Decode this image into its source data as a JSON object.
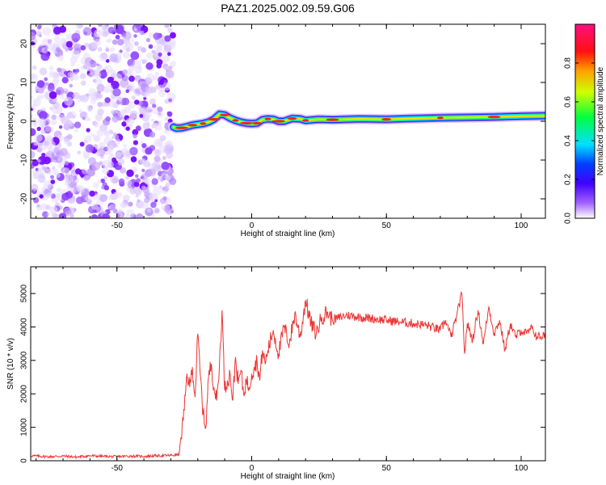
{
  "title": "PAZ1.2025.002.09.59.G06",
  "colorbar": {
    "label": "Normalized spectral amplitude",
    "ticks": [
      0.0,
      0.2,
      0.4,
      0.6,
      0.8
    ],
    "tick_labels": [
      "0.0",
      "0.2",
      "0.4",
      "0.6",
      "0.8"
    ],
    "range": [
      0,
      1
    ],
    "colormap": [
      "#ffffff",
      "#7a00ff",
      "#0000ff",
      "#00ffff",
      "#00ff00",
      "#ffff00",
      "#ff0000",
      "#ff007f"
    ]
  },
  "chart_data": [
    {
      "type": "heatmap",
      "xlabel": "Height of straight line (km)",
      "ylabel": "Frequency (Hz)",
      "xlim": [
        -82,
        109
      ],
      "ylim": [
        -25,
        25
      ],
      "xticks": [
        -50,
        0,
        50,
        100
      ],
      "xtick_labels": [
        "-50",
        "0",
        "50",
        "100"
      ],
      "yticks": [
        -20,
        -10,
        0,
        10,
        20
      ],
      "ytick_labels": [
        "-20",
        "-10",
        "0",
        "10",
        "20"
      ],
      "noise_region_x": [
        -82,
        -29
      ],
      "signal_track": {
        "x": [
          -29,
          -28,
          -26,
          -24,
          -22,
          -20,
          -18,
          -16,
          -14,
          -12,
          -10,
          -8,
          -6,
          -4,
          -2,
          0,
          2,
          4,
          6,
          8,
          10,
          12,
          15,
          18,
          20,
          25,
          30,
          40,
          50,
          60,
          70,
          80,
          90,
          100,
          109
        ],
        "freq": [
          -1.5,
          -1.8,
          -1.7,
          -1.4,
          -1.0,
          -0.8,
          -0.6,
          -0.2,
          0.5,
          1.8,
          1.6,
          0.8,
          0.2,
          -0.2,
          -0.5,
          -0.6,
          -0.5,
          0.4,
          0.6,
          0.5,
          0.0,
          0.0,
          0.7,
          0.6,
          0.2,
          0.5,
          0.4,
          0.6,
          0.5,
          0.7,
          0.9,
          1.0,
          1.1,
          1.3,
          1.4
        ]
      }
    },
    {
      "type": "line",
      "xlabel": "Height of straight line (km)",
      "ylabel": "SNR (10 * v/v)",
      "xlim": [
        -82,
        109
      ],
      "ylim": [
        0,
        5800
      ],
      "xticks": [
        -50,
        0,
        50,
        100
      ],
      "xtick_labels": [
        "-50",
        "0",
        "50",
        "100"
      ],
      "yticks": [
        0,
        1000,
        2000,
        3000,
        4000,
        5000
      ],
      "ytick_labels": [
        "0",
        "1000",
        "2000",
        "3000",
        "4000",
        "5000"
      ],
      "series": [
        {
          "color": "#ee3333",
          "x": [
            -82,
            -75,
            -70,
            -65,
            -60,
            -55,
            -50,
            -45,
            -40,
            -35,
            -30,
            -27,
            -25,
            -24,
            -23,
            -22,
            -21,
            -20,
            -19,
            -18,
            -17,
            -16,
            -15,
            -14,
            -13,
            -12,
            -11,
            -10,
            -9,
            -8,
            -7,
            -6,
            -5,
            -4,
            -3,
            -2,
            -1,
            0,
            1,
            2,
            3,
            4,
            5,
            6,
            8,
            10,
            12,
            14,
            16,
            18,
            20,
            22,
            24,
            26,
            28,
            30,
            35,
            40,
            45,
            50,
            55,
            60,
            65,
            70,
            72,
            74,
            76,
            78,
            79,
            80,
            82,
            84,
            86,
            88,
            90,
            92,
            94,
            96,
            98,
            100,
            102,
            104,
            106,
            109
          ],
          "y": [
            150,
            120,
            140,
            110,
            150,
            130,
            120,
            140,
            130,
            150,
            160,
            180,
            1500,
            2600,
            2200,
            2800,
            1900,
            3800,
            2500,
            1400,
            1000,
            2500,
            2900,
            2200,
            1800,
            2800,
            4500,
            2100,
            2400,
            2600,
            1800,
            3100,
            2300,
            2700,
            2000,
            2400,
            2200,
            2600,
            2800,
            3000,
            2400,
            3300,
            2900,
            3300,
            3900,
            3200,
            4000,
            3500,
            4400,
            3700,
            4800,
            4100,
            3800,
            4300,
            4450,
            4200,
            4350,
            4300,
            4250,
            4200,
            4150,
            4100,
            4050,
            3900,
            4200,
            3700,
            4300,
            5000,
            3200,
            4100,
            3600,
            4500,
            3500,
            4600,
            3800,
            4200,
            3300,
            4100,
            3700,
            3900,
            3800,
            3950,
            3700,
            3750
          ]
        }
      ]
    }
  ]
}
